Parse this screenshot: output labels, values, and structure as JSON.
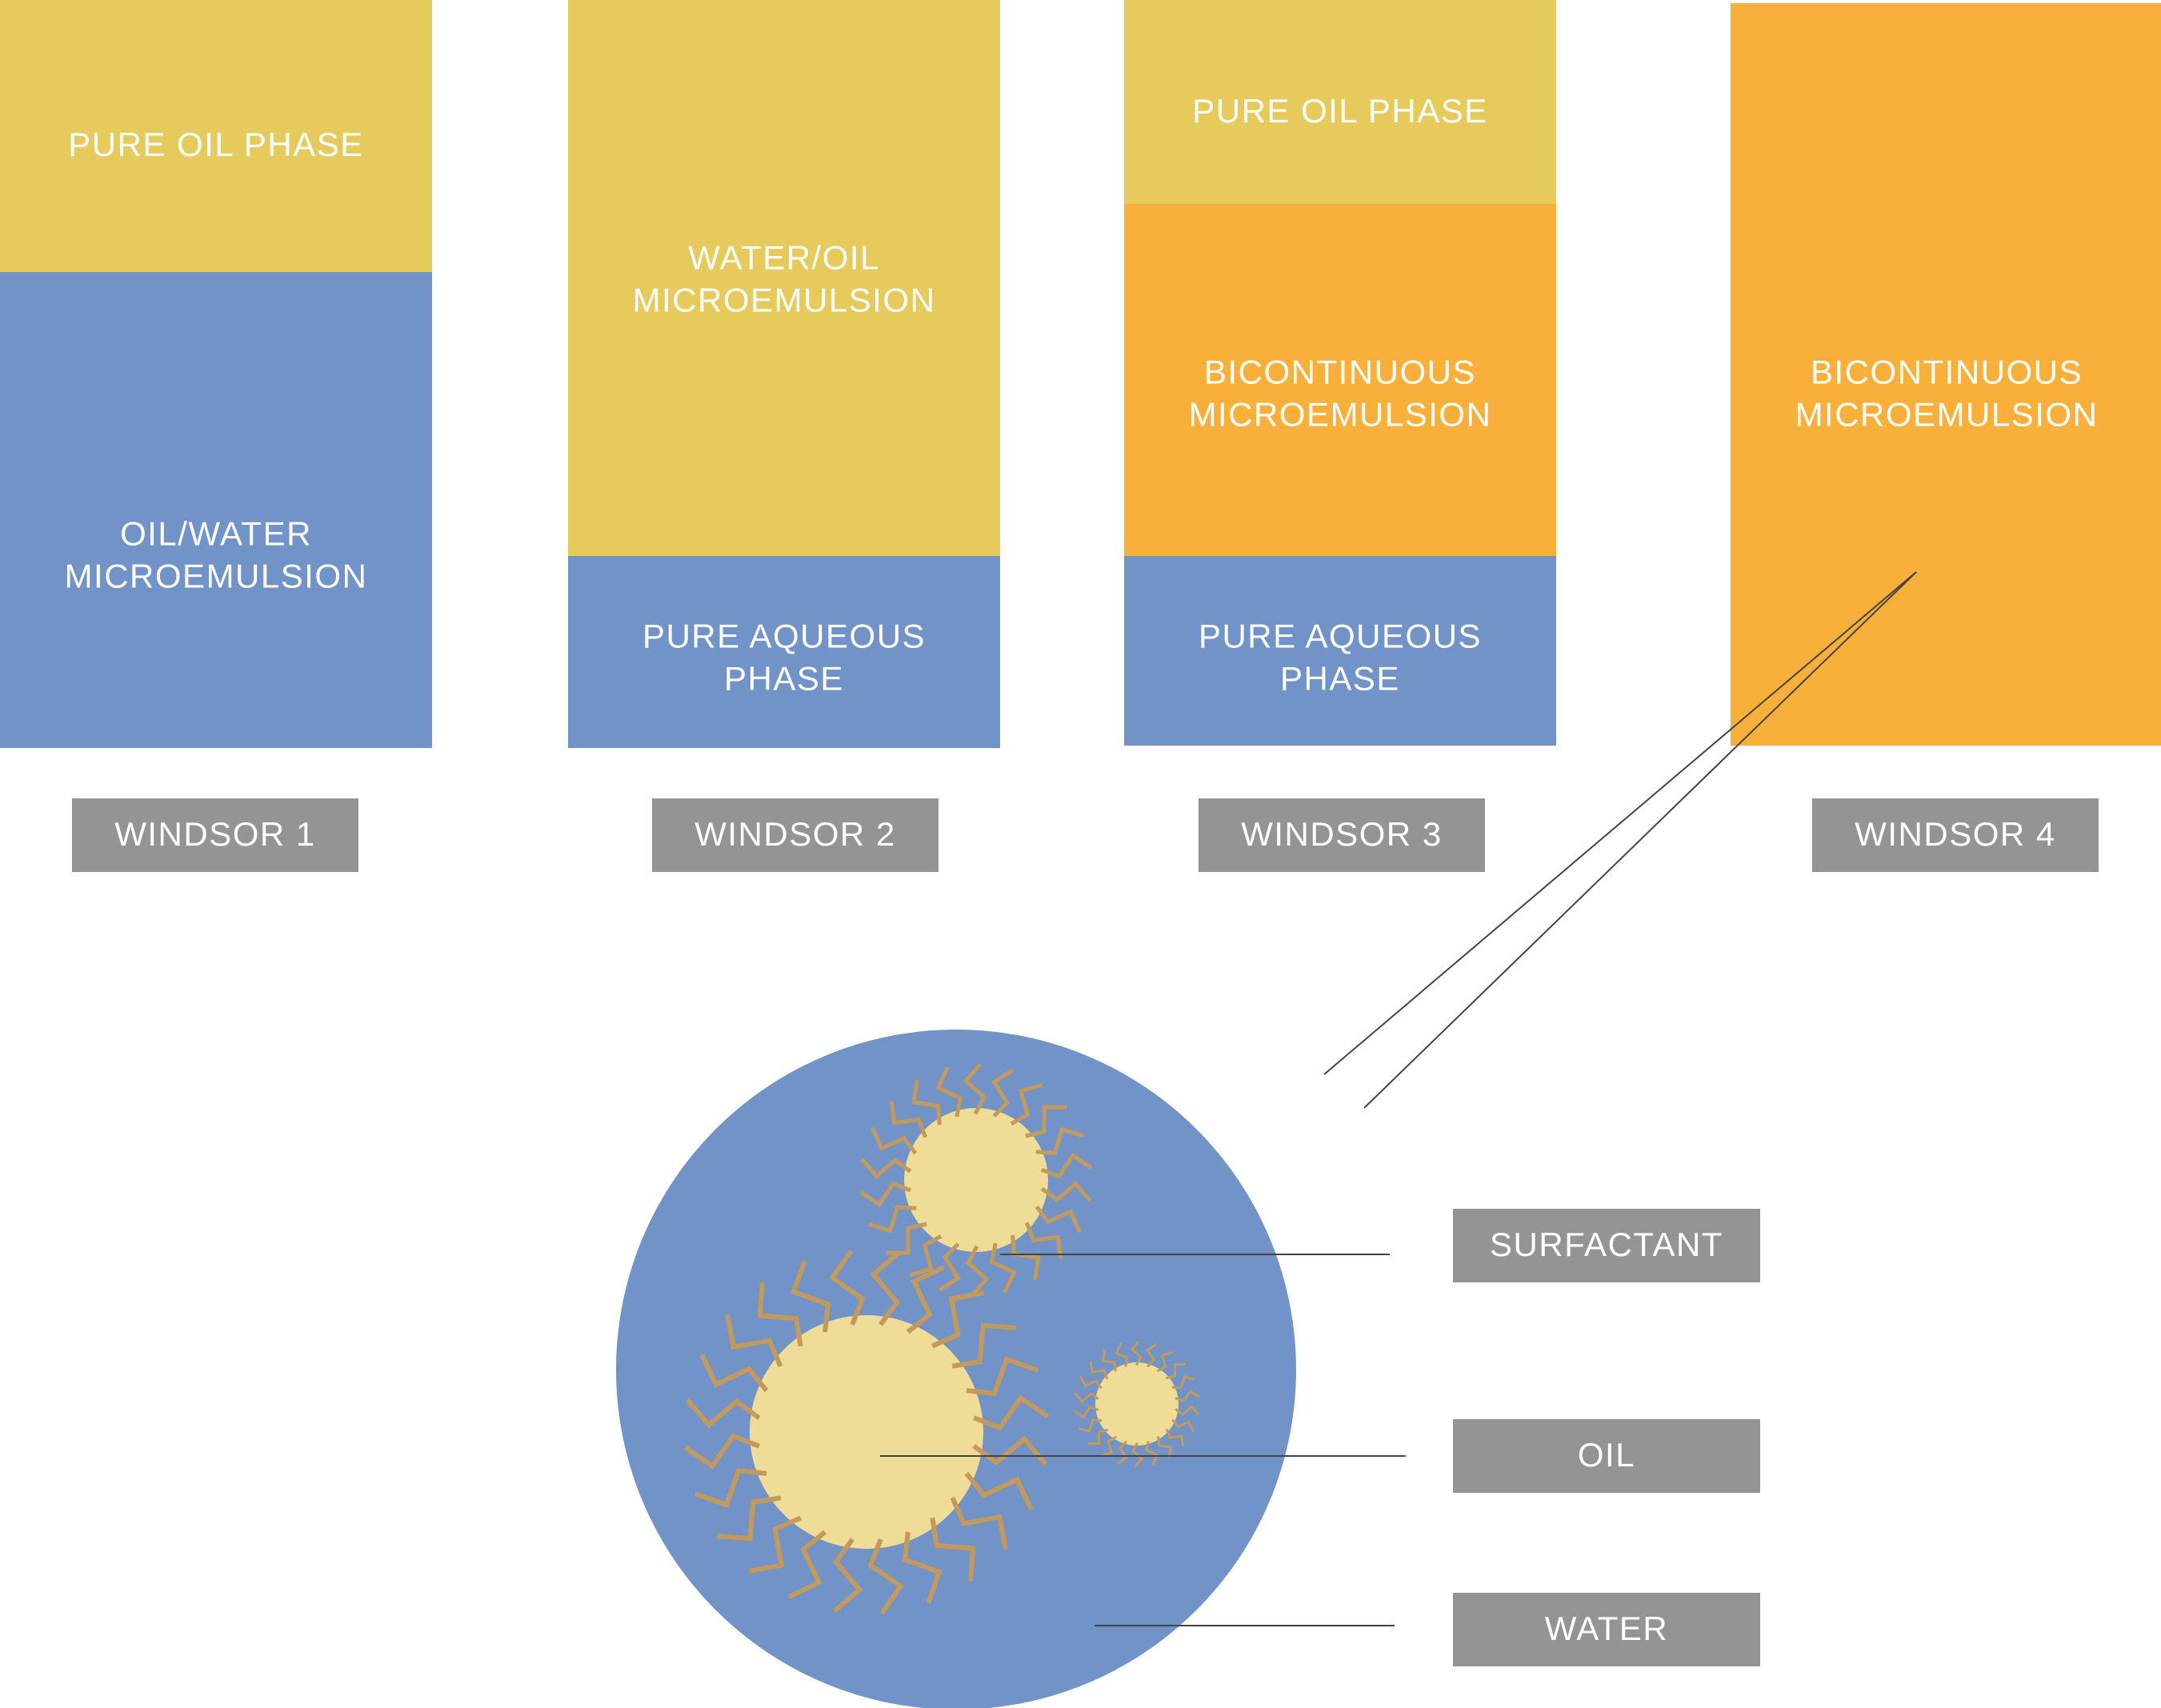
{
  "colors": {
    "oil": "#e6ca5c",
    "water": "#7193c8",
    "bicontinuous": "#f9b03b",
    "label_box": "#949494",
    "droplet_core": "#efdc96",
    "surfactant": "#c49a5c",
    "leader_line": "#444444"
  },
  "columns": [
    {
      "label": "WINDSOR 1",
      "phases": [
        {
          "kind": "oil",
          "lines": [
            "PURE OIL PHASE"
          ]
        },
        {
          "kind": "water",
          "lines": [
            "OIL/WATER",
            "MICROEMULSION"
          ]
        }
      ]
    },
    {
      "label": "WINDSOR 2",
      "phases": [
        {
          "kind": "oil",
          "lines": [
            "WATER/OIL",
            "MICROEMULSION"
          ]
        },
        {
          "kind": "water",
          "lines": [
            "PURE AQUEOUS",
            "PHASE"
          ]
        }
      ]
    },
    {
      "label": "WINDSOR 3",
      "phases": [
        {
          "kind": "oil",
          "lines": [
            "PURE OIL PHASE"
          ]
        },
        {
          "kind": "bicontinuous",
          "lines": [
            "BICONTINUOUS",
            "MICROEMULSION"
          ]
        },
        {
          "kind": "water",
          "lines": [
            "PURE AQUEOUS",
            "PHASE"
          ]
        }
      ]
    },
    {
      "label": "WINDSOR 4",
      "phases": [
        {
          "kind": "bicontinuous",
          "lines": [
            "BICONTINUOUS",
            "MICROEMULSION"
          ]
        }
      ]
    }
  ],
  "legend": [
    {
      "key": "surfactant",
      "label": "SURFACTANT"
    },
    {
      "key": "oil",
      "label": "OIL"
    },
    {
      "key": "water",
      "label": "WATER"
    }
  ]
}
